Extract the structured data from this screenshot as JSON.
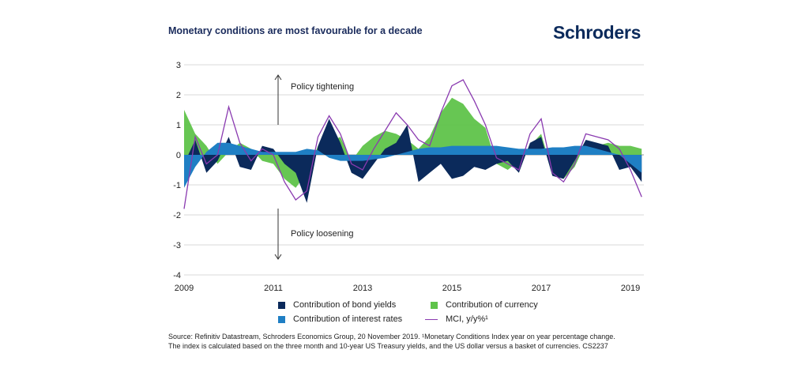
{
  "header": {
    "title": "Monetary conditions are most favourable for a decade",
    "brand": "Schroders"
  },
  "chart_data": {
    "type": "area",
    "title": "Monetary conditions are most favourable for a decade",
    "xlim": [
      2009.0,
      2019.3
    ],
    "ylim": [
      -4,
      3
    ],
    "x_ticks": [
      "2009",
      "2011",
      "2013",
      "2015",
      "2017",
      "2019"
    ],
    "y_ticks": [
      "3",
      "2",
      "1",
      "0",
      "-1",
      "-2",
      "-3",
      "-4"
    ],
    "grid": true,
    "annotations": [
      {
        "text": "Policy tightening",
        "arrow": "up"
      },
      {
        "text": "Policy loosening",
        "arrow": "down"
      }
    ],
    "series": [
      {
        "name": "Contribution of bond yields",
        "color": "#0b2a5b",
        "x": [
          2009.0,
          2009.25,
          2009.5,
          2009.75,
          2010.0,
          2010.25,
          2010.5,
          2010.75,
          2011.0,
          2011.25,
          2011.5,
          2011.75,
          2012.0,
          2012.25,
          2012.5,
          2012.75,
          2013.0,
          2013.25,
          2013.5,
          2013.75,
          2014.0,
          2014.25,
          2014.5,
          2014.75,
          2015.0,
          2015.25,
          2015.5,
          2015.75,
          2016.0,
          2016.25,
          2016.5,
          2016.75,
          2017.0,
          2017.25,
          2017.5,
          2017.75,
          2018.0,
          2018.25,
          2018.5,
          2018.75,
          2019.0,
          2019.25
        ],
        "values": [
          -0.3,
          0.5,
          -0.6,
          -0.2,
          0.6,
          -0.4,
          -0.5,
          0.3,
          0.2,
          -0.3,
          -0.6,
          -1.6,
          0.3,
          1.2,
          0.4,
          -0.6,
          -0.8,
          -0.3,
          0.2,
          0.4,
          1.0,
          -0.9,
          -0.6,
          -0.3,
          -0.8,
          -0.7,
          -0.4,
          -0.5,
          -0.3,
          -0.2,
          -0.6,
          0.4,
          0.6,
          -0.7,
          -0.8,
          -0.2,
          0.5,
          0.4,
          0.3,
          -0.5,
          -0.4,
          -0.9
        ]
      },
      {
        "name": "Contribution of currency",
        "color": "#5fc34a",
        "x": [
          2009.0,
          2009.25,
          2009.5,
          2009.75,
          2010.0,
          2010.25,
          2010.5,
          2010.75,
          2011.0,
          2011.25,
          2011.5,
          2011.75,
          2012.0,
          2012.25,
          2012.5,
          2012.75,
          2013.0,
          2013.25,
          2013.5,
          2013.75,
          2014.0,
          2014.25,
          2014.5,
          2014.75,
          2015.0,
          2015.25,
          2015.5,
          2015.75,
          2016.0,
          2016.25,
          2016.5,
          2016.75,
          2017.0,
          2017.25,
          2017.5,
          2017.75,
          2018.0,
          2018.25,
          2018.5,
          2018.75,
          2019.0,
          2019.25
        ],
        "values": [
          1.5,
          0.7,
          0.3,
          -0.3,
          0.1,
          0.4,
          0.2,
          -0.2,
          -0.3,
          -0.8,
          -1.1,
          -0.6,
          0.3,
          0.4,
          0.6,
          -0.2,
          0.3,
          0.6,
          0.8,
          0.7,
          0.5,
          0.2,
          0.6,
          1.4,
          1.9,
          1.7,
          1.2,
          0.9,
          -0.3,
          -0.5,
          -0.2,
          0.3,
          0.7,
          -0.6,
          -0.8,
          -0.4,
          0.4,
          0.3,
          0.4,
          0.3,
          0.3,
          0.2
        ]
      },
      {
        "name": "Contribution of interest rates",
        "color": "#1f7fc4",
        "x": [
          2009.0,
          2009.25,
          2009.5,
          2009.75,
          2010.0,
          2010.25,
          2010.5,
          2010.75,
          2011.0,
          2011.25,
          2011.5,
          2011.75,
          2012.0,
          2012.25,
          2012.5,
          2012.75,
          2013.0,
          2013.25,
          2013.5,
          2013.75,
          2014.0,
          2014.25,
          2014.5,
          2014.75,
          2015.0,
          2015.25,
          2015.5,
          2015.75,
          2016.0,
          2016.25,
          2016.5,
          2016.75,
          2017.0,
          2017.25,
          2017.5,
          2017.75,
          2018.0,
          2018.25,
          2018.5,
          2018.75,
          2019.0,
          2019.25
        ],
        "values": [
          -1.1,
          -0.4,
          0.1,
          0.4,
          0.4,
          0.3,
          0.2,
          0.1,
          0.1,
          0.1,
          0.1,
          0.2,
          0.15,
          -0.1,
          -0.2,
          -0.2,
          -0.2,
          -0.15,
          -0.1,
          0.0,
          0.1,
          0.2,
          0.25,
          0.25,
          0.3,
          0.3,
          0.3,
          0.3,
          0.3,
          0.25,
          0.2,
          0.2,
          0.2,
          0.25,
          0.25,
          0.3,
          0.3,
          0.2,
          0.1,
          0.0,
          -0.3,
          -0.6
        ]
      },
      {
        "name": "MCI, y/y%¹",
        "color": "#8a3ab0",
        "x": [
          2009.0,
          2009.25,
          2009.5,
          2009.75,
          2010.0,
          2010.25,
          2010.5,
          2010.75,
          2011.0,
          2011.25,
          2011.5,
          2011.75,
          2012.0,
          2012.25,
          2012.5,
          2012.75,
          2013.0,
          2013.25,
          2013.5,
          2013.75,
          2014.0,
          2014.25,
          2014.5,
          2014.75,
          2015.0,
          2015.25,
          2015.5,
          2015.75,
          2016.0,
          2016.25,
          2016.5,
          2016.75,
          2017.0,
          2017.25,
          2017.5,
          2017.75,
          2018.0,
          2018.25,
          2018.5,
          2018.75,
          2019.0,
          2019.25
        ],
        "values": [
          -1.8,
          0.6,
          -0.3,
          0.0,
          1.6,
          0.4,
          -0.2,
          0.2,
          0.0,
          -0.9,
          -1.5,
          -1.2,
          0.6,
          1.3,
          0.7,
          -0.3,
          -0.5,
          0.2,
          0.8,
          1.4,
          1.0,
          0.5,
          0.3,
          1.4,
          2.3,
          2.5,
          1.8,
          1.0,
          -0.1,
          -0.3,
          -0.5,
          0.7,
          1.2,
          -0.6,
          -0.9,
          -0.3,
          0.7,
          0.6,
          0.5,
          0.2,
          -0.5,
          -1.4
        ]
      }
    ]
  },
  "legend": {
    "items": [
      {
        "label": "Contribution of bond yields",
        "color": "#0b2a5b",
        "kind": "square"
      },
      {
        "label": "Contribution of currency",
        "color": "#5fc34a",
        "kind": "square"
      },
      {
        "label": "Contribution of interest rates",
        "color": "#1f7fc4",
        "kind": "square"
      },
      {
        "label": "MCI, y/y%¹",
        "color": "#8a3ab0",
        "kind": "line"
      }
    ]
  },
  "source": {
    "line1": "Source: Refinitiv Datastream, Schroders Economics Group, 20 November 2019. ¹Monetary Conditions Index year on year percentage change.",
    "line2": "The index is calculated based on the three month and 10-year US Treasury yields, and the US dollar versus a basket of currencies. CS2237"
  }
}
